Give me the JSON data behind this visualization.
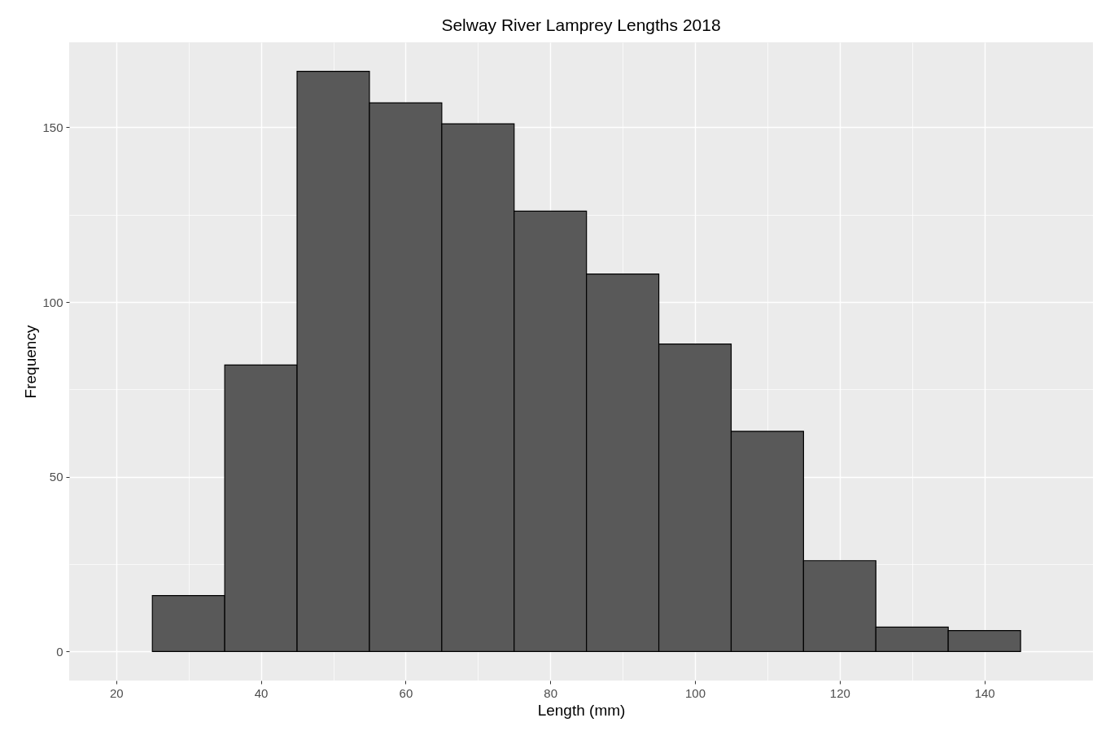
{
  "chart_data": {
    "type": "histogram",
    "title": "Selway River Lamprey Lengths 2018",
    "xlabel": "Length (mm)",
    "ylabel": "Frequency",
    "bins": [
      25,
      35,
      45,
      55,
      65,
      75,
      85,
      95,
      105,
      115,
      125,
      135,
      145
    ],
    "values": [
      16,
      82,
      166,
      157,
      151,
      126,
      108,
      88,
      63,
      26,
      7,
      6
    ],
    "color": "#595959",
    "xlim": [
      13.5,
      155
    ],
    "xticks": [
      20,
      40,
      60,
      80,
      100,
      120,
      140
    ],
    "ylim": [
      -8.3,
      174.3
    ],
    "yticks": [
      0,
      50,
      100,
      150
    ],
    "grid": true
  }
}
